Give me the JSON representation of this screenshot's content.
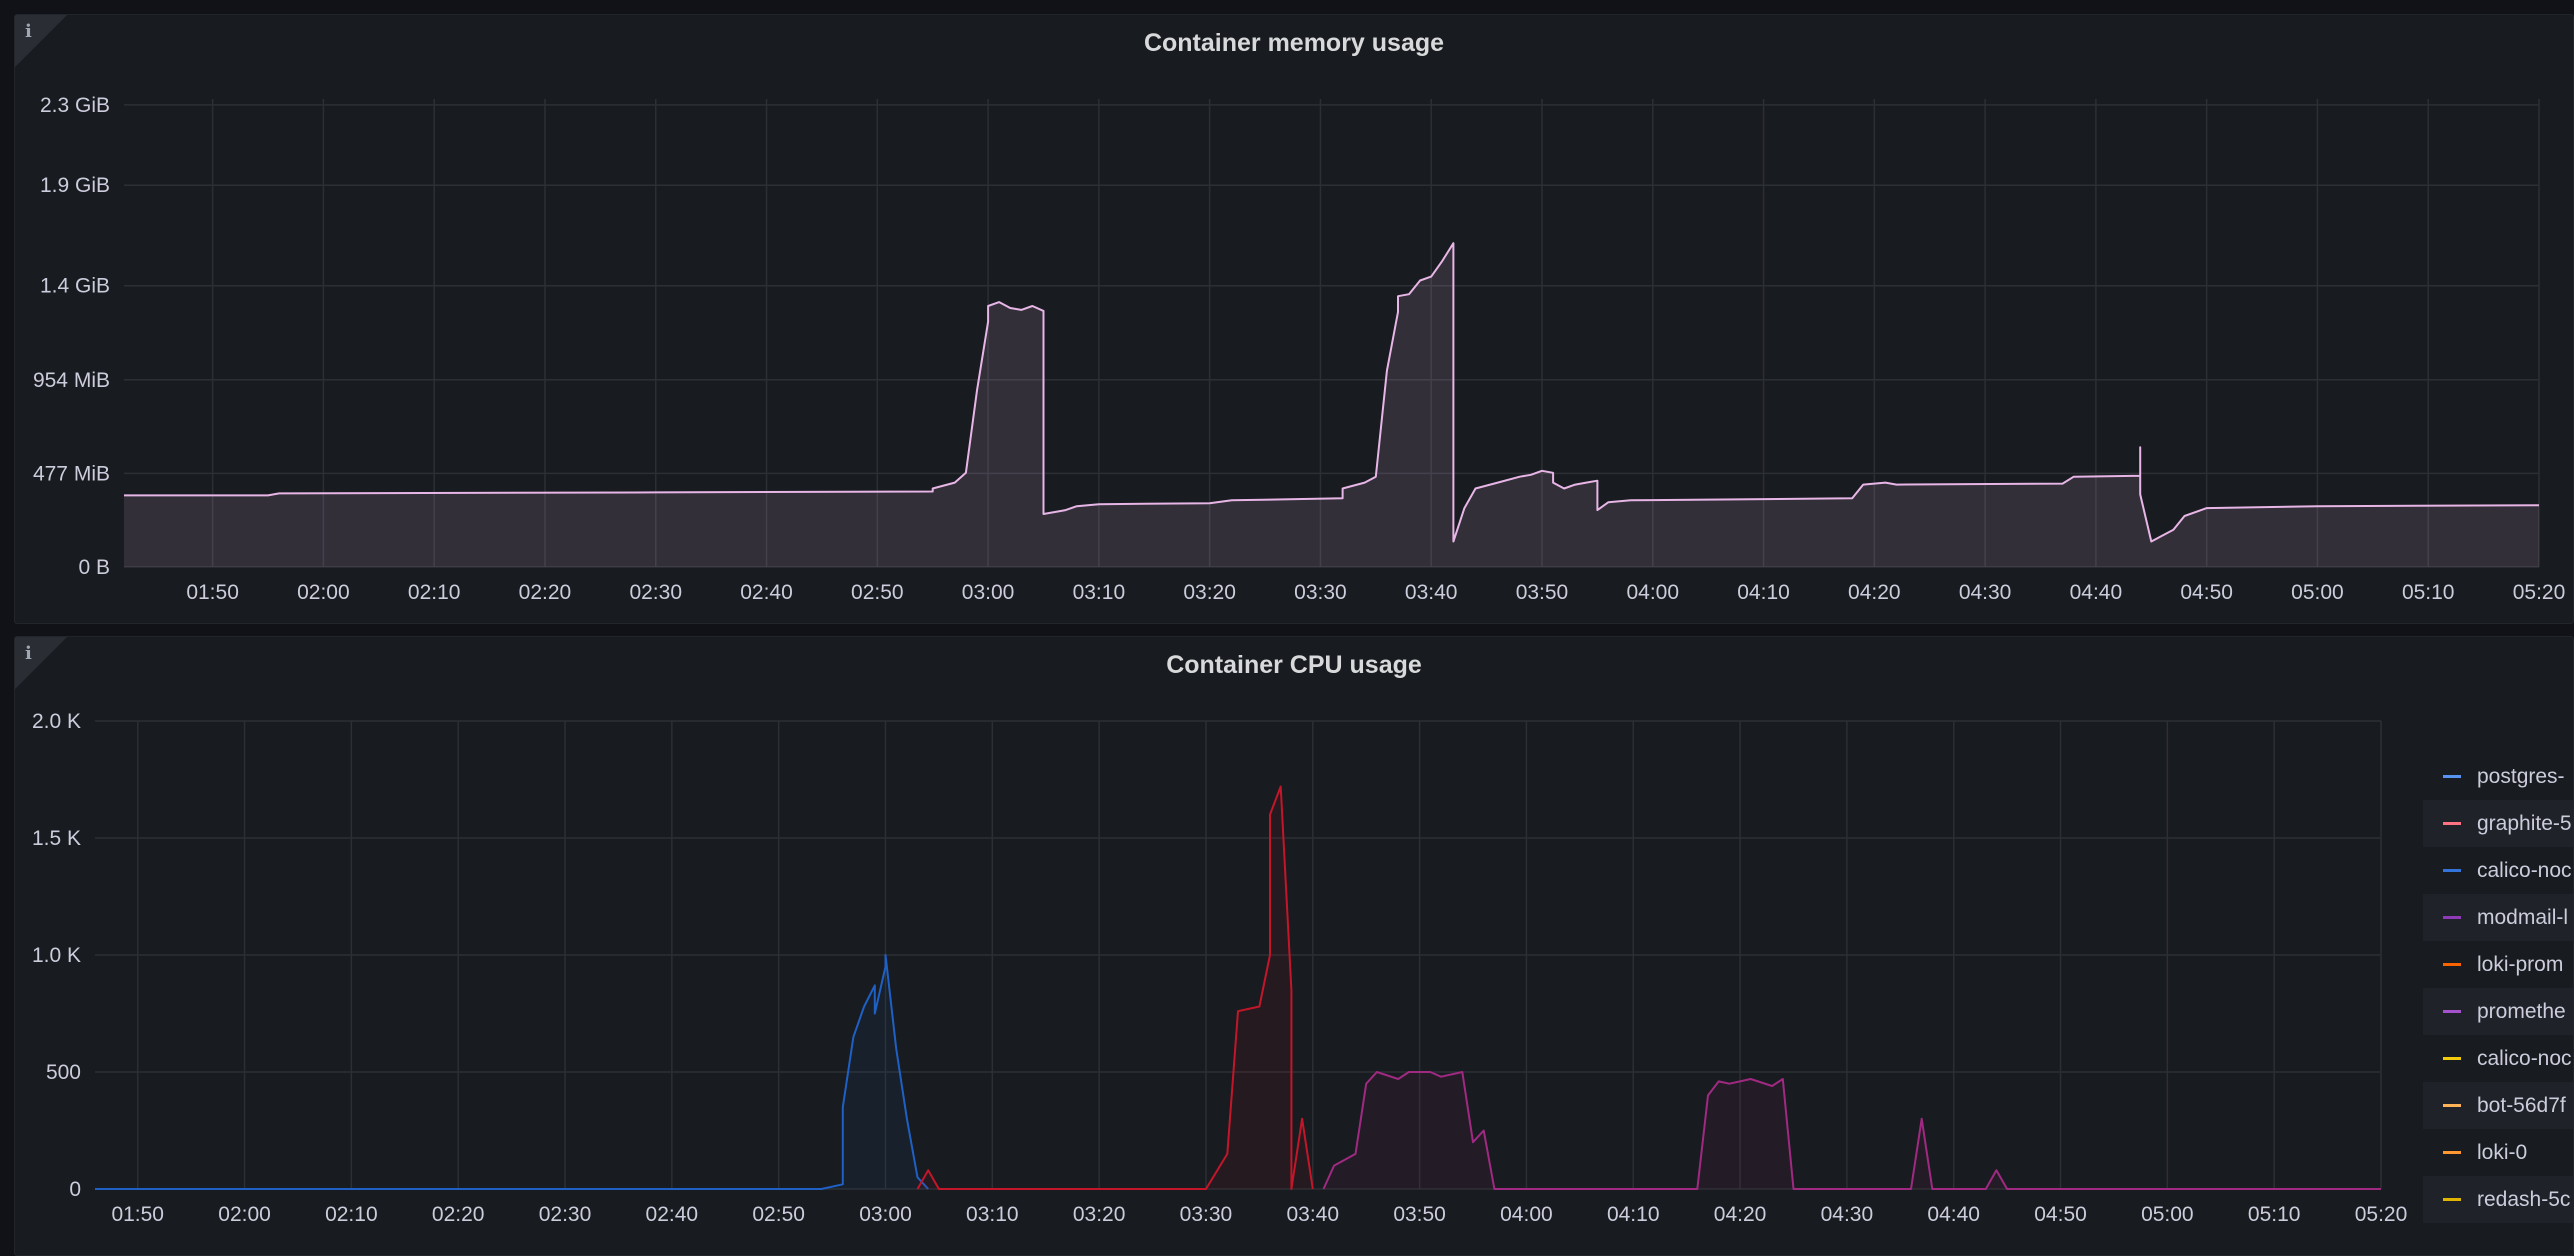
{
  "chart_data": [
    {
      "type": "area",
      "title": "Container memory usage",
      "xlabel": "",
      "ylabel": "",
      "x_ticks": [
        "01:50",
        "02:00",
        "02:10",
        "02:20",
        "02:30",
        "02:40",
        "02:50",
        "03:00",
        "03:10",
        "03:20",
        "03:30",
        "03:40",
        "03:50",
        "04:00",
        "04:10",
        "04:20",
        "04:30",
        "04:40",
        "04:50",
        "05:00",
        "05:10",
        "05:20"
      ],
      "y_ticks": [
        "0 B",
        "477 MiB",
        "954 MiB",
        "1.4 GiB",
        "1.9 GiB",
        "2.3 GiB"
      ],
      "xlim": [
        "01:42",
        "05:20"
      ],
      "ylim_mib": [
        0,
        2385
      ],
      "grid": true,
      "legend": "none",
      "series": [
        {
          "color": "#e8b6e6",
          "points": [
            [
              "01:42",
              365
            ],
            [
              "01:55",
              365
            ],
            [
              "01:56",
              375
            ],
            [
              "02:30",
              380
            ],
            [
              "02:55",
              385
            ],
            [
              "02:55",
              400
            ],
            [
              "02:57",
              430
            ],
            [
              "02:58",
              480
            ],
            [
              "02:59",
              900
            ],
            [
              "03:00",
              1250
            ],
            [
              "03:00",
              1330
            ],
            [
              "03:01",
              1350
            ],
            [
              "03:02",
              1320
            ],
            [
              "03:03",
              1310
            ],
            [
              "03:04",
              1330
            ],
            [
              "03:05",
              1305
            ],
            [
              "03:05",
              270
            ],
            [
              "03:07",
              290
            ],
            [
              "03:08",
              310
            ],
            [
              "03:10",
              320
            ],
            [
              "03:20",
              325
            ],
            [
              "03:22",
              340
            ],
            [
              "03:32",
              350
            ],
            [
              "03:32",
              400
            ],
            [
              "03:34",
              430
            ],
            [
              "03:35",
              460
            ],
            [
              "03:36",
              1000
            ],
            [
              "03:37",
              1300
            ],
            [
              "03:37",
              1380
            ],
            [
              "03:38",
              1390
            ],
            [
              "03:39",
              1460
            ],
            [
              "03:40",
              1480
            ],
            [
              "03:41",
              1560
            ],
            [
              "03:42",
              1650
            ],
            [
              "03:42",
              130
            ],
            [
              "03:43",
              300
            ],
            [
              "03:44",
              400
            ],
            [
              "03:46",
              430
            ],
            [
              "03:48",
              460
            ],
            [
              "03:49",
              470
            ],
            [
              "03:50",
              490
            ],
            [
              "03:51",
              480
            ],
            [
              "03:51",
              430
            ],
            [
              "03:52",
              400
            ],
            [
              "03:53",
              420
            ],
            [
              "03:54",
              430
            ],
            [
              "03:55",
              440
            ],
            [
              "03:55",
              290
            ],
            [
              "03:56",
              330
            ],
            [
              "03:58",
              340
            ],
            [
              "04:18",
              350
            ],
            [
              "04:19",
              420
            ],
            [
              "04:21",
              430
            ],
            [
              "04:22",
              420
            ],
            [
              "04:37",
              425
            ],
            [
              "04:38",
              460
            ],
            [
              "04:44",
              465
            ],
            [
              "04:44",
              610
            ],
            [
              "04:44",
              370
            ],
            [
              "04:45",
              130
            ],
            [
              "04:47",
              190
            ],
            [
              "04:48",
              260
            ],
            [
              "04:50",
              300
            ],
            [
              "05:00",
              310
            ],
            [
              "05:20",
              315
            ]
          ]
        }
      ]
    },
    {
      "type": "line",
      "title": "Container CPU usage",
      "xlabel": "",
      "ylabel": "",
      "x_ticks": [
        "01:50",
        "02:00",
        "02:10",
        "02:20",
        "02:30",
        "02:40",
        "02:50",
        "03:00",
        "03:10",
        "03:20",
        "03:30",
        "03:40",
        "03:50",
        "04:00",
        "04:10",
        "04:20",
        "04:30",
        "04:40",
        "04:50",
        "05:00",
        "05:10",
        "05:20"
      ],
      "y_ticks": [
        "0",
        "500",
        "1.0 K",
        "1.5 K",
        "2.0 K"
      ],
      "xlim": [
        "01:46",
        "05:20"
      ],
      "ylim": [
        0,
        2000
      ],
      "grid": true,
      "legend": "right",
      "legend_entries": [
        {
          "name": "postgres-",
          "color": "#5794f2"
        },
        {
          "name": "graphite-5",
          "color": "#ff7383"
        },
        {
          "name": "calico-noc",
          "color": "#3274d9"
        },
        {
          "name": "modmail-l",
          "color": "#8f3bb8"
        },
        {
          "name": "loki-prom",
          "color": "#fa6400"
        },
        {
          "name": "promethe",
          "color": "#a352cc"
        },
        {
          "name": "calico-noc",
          "color": "#f2cc0c"
        },
        {
          "name": "bot-56d7f",
          "color": "#ffb357"
        },
        {
          "name": "loki-0",
          "color": "#ff9830"
        },
        {
          "name": "redash-5c",
          "color": "#e0b400"
        }
      ],
      "series": [
        {
          "color": "#1f60c4",
          "points": [
            [
              "01:46",
              0
            ],
            [
              "02:54",
              0
            ],
            [
              "02:56",
              20
            ],
            [
              "02:56",
              350
            ],
            [
              "02:57",
              650
            ],
            [
              "02:58",
              780
            ],
            [
              "02:59",
              870
            ],
            [
              "02:59",
              750
            ],
            [
              "03:00",
              950
            ],
            [
              "03:00",
              1000
            ],
            [
              "03:01",
              600
            ],
            [
              "03:02",
              300
            ],
            [
              "03:03",
              50
            ],
            [
              "03:04",
              0
            ]
          ]
        },
        {
          "color": "#c4162a",
          "points": [
            [
              "03:03",
              0
            ],
            [
              "03:04",
              80
            ],
            [
              "03:05",
              0
            ],
            [
              "03:30",
              0
            ],
            [
              "03:32",
              150
            ],
            [
              "03:33",
              760
            ],
            [
              "03:35",
              780
            ],
            [
              "03:36",
              1000
            ],
            [
              "03:36",
              1600
            ],
            [
              "03:37",
              1720
            ],
            [
              "03:38",
              850
            ],
            [
              "03:38",
              0
            ],
            [
              "03:39",
              300
            ],
            [
              "03:40",
              0
            ]
          ]
        },
        {
          "color": "#a02a82",
          "points": [
            [
              "03:41",
              0
            ],
            [
              "03:42",
              100
            ],
            [
              "03:44",
              150
            ],
            [
              "03:45",
              450
            ],
            [
              "03:46",
              500
            ],
            [
              "03:48",
              470
            ],
            [
              "03:49",
              500
            ],
            [
              "03:51",
              500
            ],
            [
              "03:52",
              480
            ],
            [
              "03:54",
              500
            ],
            [
              "03:55",
              200
            ],
            [
              "03:56",
              250
            ],
            [
              "03:57",
              0
            ],
            [
              "04:16",
              0
            ],
            [
              "04:17",
              400
            ],
            [
              "04:18",
              460
            ],
            [
              "04:19",
              450
            ],
            [
              "04:21",
              470
            ],
            [
              "04:23",
              440
            ],
            [
              "04:24",
              470
            ],
            [
              "04:25",
              0
            ],
            [
              "04:36",
              0
            ],
            [
              "04:37",
              300
            ],
            [
              "04:38",
              0
            ],
            [
              "04:43",
              0
            ],
            [
              "04:44",
              80
            ],
            [
              "04:45",
              0
            ],
            [
              "05:20",
              0
            ]
          ]
        }
      ]
    }
  ]
}
